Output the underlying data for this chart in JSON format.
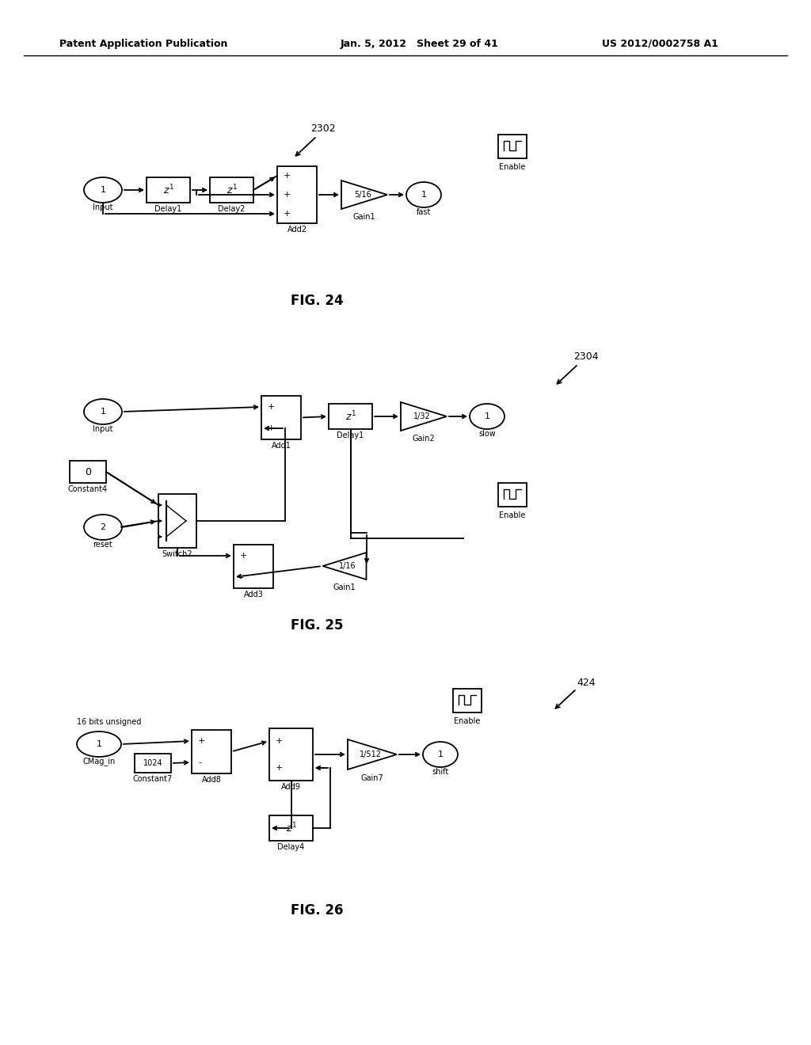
{
  "header_left": "Patent Application Publication",
  "header_mid": "Jan. 5, 2012   Sheet 29 of 41",
  "header_right": "US 2012/0002758 A1",
  "fig24_label": "FIG. 24",
  "fig25_label": "FIG. 25",
  "fig26_label": "FIG. 26",
  "bg_color": "#ffffff"
}
